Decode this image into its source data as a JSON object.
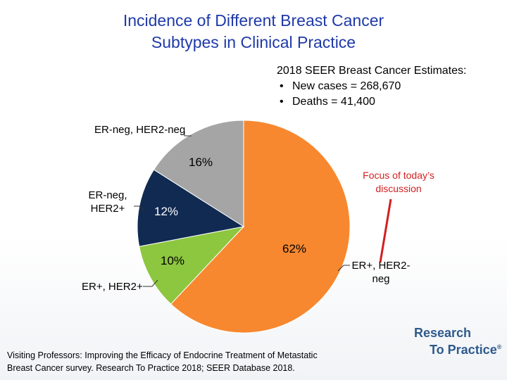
{
  "title": {
    "line1": "Incidence of Different Breast Cancer",
    "line2": "Subtypes in Clinical Practice"
  },
  "seer": {
    "heading": "2018 SEER Breast Cancer Estimates:",
    "items": [
      "New cases = 268,670",
      "Deaths = 41,400"
    ]
  },
  "chart_data": {
    "type": "pie",
    "title": "Incidence of Different Breast Cancer Subtypes in Clinical Practice",
    "start_angle_deg": 0,
    "direction": "clockwise",
    "slices": [
      {
        "label": "ER+, HER2-neg",
        "value": 62,
        "display": "62%",
        "color": "#f7882f"
      },
      {
        "label": "ER+, HER2+",
        "value": 10,
        "display": "10%",
        "color": "#8dc63f"
      },
      {
        "label": "ER-neg, HER2+",
        "value": 12,
        "display": "12%",
        "color": "#102a52"
      },
      {
        "label": "ER-neg, HER2-neg",
        "value": 16,
        "display": "16%",
        "color": "#a5a5a5"
      }
    ],
    "annotation": "Focus of today’s discussion",
    "annotation_color": "#d21f1f"
  },
  "labels": {
    "er_neg_her2_neg": "ER-neg, HER2-neg",
    "er_neg_her2_pos_l1": "ER-neg,",
    "er_neg_her2_pos_l2": "HER2+",
    "er_pos_her2_pos": "ER+, HER2+",
    "er_pos_her2_neg_l1": "ER+, HER2-",
    "er_pos_her2_neg_l2": "neg",
    "focus_l1": "Focus of today’s",
    "focus_l2": "discussion"
  },
  "source": {
    "line1": "Visiting Professors: Improving the Efficacy of Endocrine Treatment of Metastatic",
    "line2": "Breast Cancer survey. Research To Practice 2018; SEER Database 2018."
  },
  "logo": {
    "line1": "Research",
    "line2": "To Practice",
    "mark": "®"
  }
}
